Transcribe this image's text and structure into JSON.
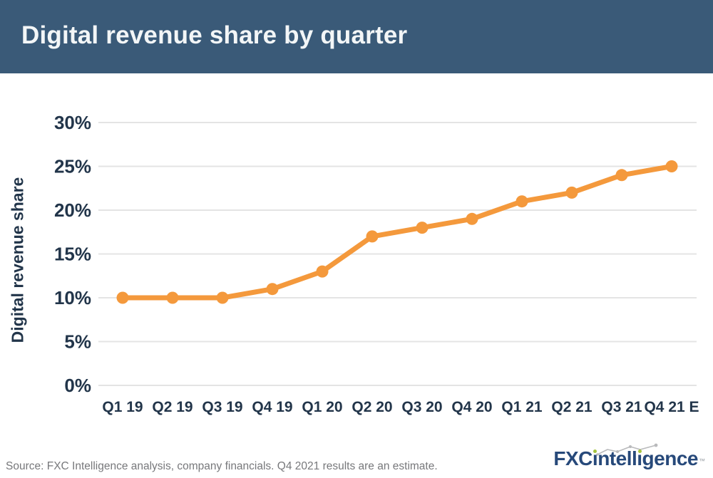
{
  "header": {
    "title": "Digital revenue share by quarter"
  },
  "chart_data": {
    "type": "line",
    "title": "Digital revenue share by quarter",
    "xlabel": "",
    "ylabel": "Digital revenue share",
    "categories": [
      "Q1 19",
      "Q2 19",
      "Q3 19",
      "Q4 19",
      "Q1 20",
      "Q2 20",
      "Q3 20",
      "Q4 20",
      "Q1 21",
      "Q2 21",
      "Q3 21",
      "Q4 21 E"
    ],
    "series": [
      {
        "name": "Digital revenue share",
        "values": [
          10,
          10,
          10,
          11,
          13,
          17,
          18,
          19,
          21,
          22,
          24,
          25
        ],
        "unit": "%",
        "color": "#f4993c"
      }
    ],
    "ylim": [
      0,
      30
    ],
    "y_tick_values": [
      30,
      25,
      20,
      15,
      10,
      5,
      0
    ],
    "y_tick_labels": [
      "30%",
      "25%",
      "20%",
      "15%",
      "10%",
      "5%",
      "0%"
    ],
    "grid": "horizontal",
    "legend": "none"
  },
  "footer": {
    "source": "Source: FXC Intelligence analysis, company financials. Q4 2021 results are an estimate.",
    "logo": {
      "prefix": "FXC",
      "rest": "intelligence",
      "trademark": "™"
    }
  },
  "colors": {
    "header_bg": "#3a5a78",
    "title_text": "#f3f6f7",
    "axis_text": "#22354a",
    "line": "#f4993c",
    "gridline": "#e4e4e4",
    "source_text": "#77787b",
    "logo_navy": "#27497a",
    "logo_green": "#a6c43f",
    "sparkline_gray": "#b9babc"
  }
}
